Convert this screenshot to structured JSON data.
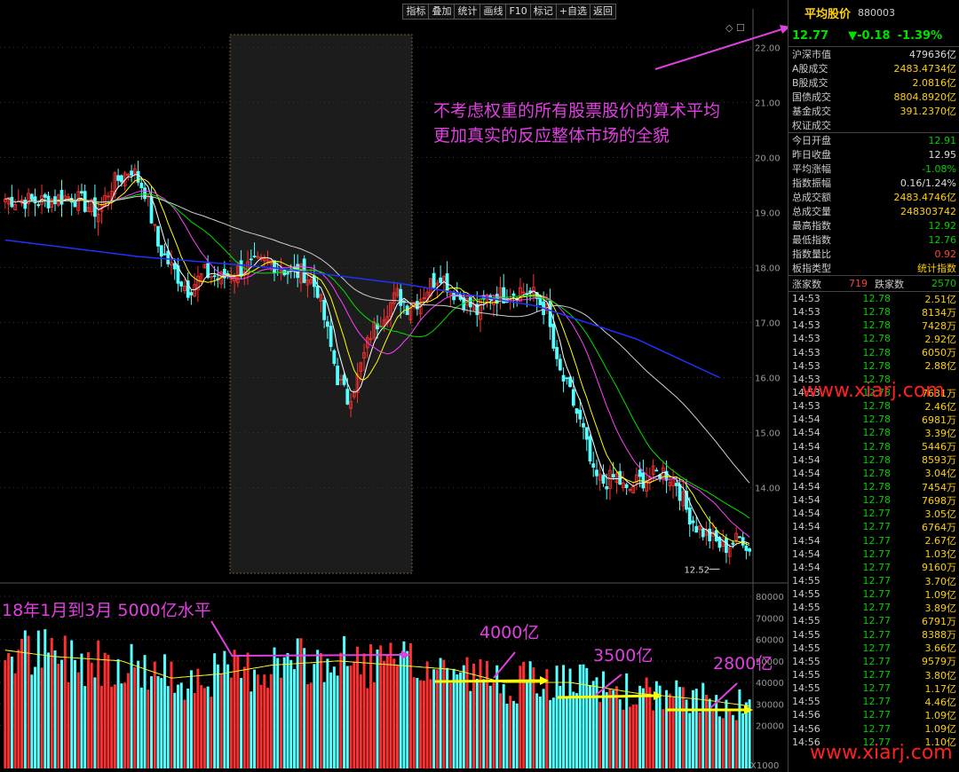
{
  "toolbar": {
    "buttons": [
      "指标",
      "叠加",
      "统计",
      "画线",
      "F10",
      "标记",
      "+自选",
      "返回"
    ]
  },
  "mini_icons": "◇ ☐",
  "panel": {
    "name": "平均股价",
    "code": "880003",
    "price": "12.77",
    "change": "▼-0.18",
    "pct": "-1.39%",
    "market_rows": [
      {
        "k": "沪深市值",
        "v": "479636亿",
        "c": "w"
      },
      {
        "k": "A股成交",
        "v": "2483.4734亿",
        "c": ""
      },
      {
        "k": "B股成交",
        "v": "2.0816亿",
        "c": ""
      },
      {
        "k": "国债成交",
        "v": "8804.8920亿",
        "c": ""
      },
      {
        "k": "基金成交",
        "v": "391.2370亿",
        "c": ""
      },
      {
        "k": "权证成交",
        "v": "",
        "c": ""
      }
    ],
    "stat_rows": [
      {
        "k": "今日开盘",
        "v": "12.91",
        "c": "g"
      },
      {
        "k": "昨日收盘",
        "v": "12.95",
        "c": "w"
      },
      {
        "k": "平均涨幅",
        "v": "-1.08%",
        "c": "g"
      },
      {
        "k": "指数振幅",
        "v": "0.16/1.24%",
        "c": "w"
      },
      {
        "k": "总成交额",
        "v": "2483.4746亿",
        "c": ""
      },
      {
        "k": "总成交量",
        "v": "248303742",
        "c": ""
      },
      {
        "k": "最高指数",
        "v": "12.92",
        "c": "g"
      },
      {
        "k": "最低指数",
        "v": "12.76",
        "c": "g"
      },
      {
        "k": "指数量比",
        "v": "0.92",
        "c": "r"
      },
      {
        "k": "板指类型",
        "v": "统计指数",
        "c": ""
      }
    ],
    "up_label": "涨家数",
    "up_count": "719",
    "down_label": "跌家数",
    "down_count": "2570",
    "ticks": [
      {
        "t": "14:53",
        "p": "12.78",
        "v": "2.51亿"
      },
      {
        "t": "14:53",
        "p": "12.78",
        "v": "8134万"
      },
      {
        "t": "14:53",
        "p": "12.78",
        "v": "7428万"
      },
      {
        "t": "14:53",
        "p": "12.78",
        "v": "2.92亿"
      },
      {
        "t": "14:53",
        "p": "12.78",
        "v": "6050万"
      },
      {
        "t": "14:53",
        "p": "12.78",
        "v": "2.88亿"
      },
      {
        "t": "14:53",
        "p": "12.78",
        "v": ""
      },
      {
        "t": "14:53",
        "p": "12.78",
        "v": "7631万"
      },
      {
        "t": "14:53",
        "p": "12.78",
        "v": "2.46亿"
      },
      {
        "t": "14:54",
        "p": "12.78",
        "v": "6981万"
      },
      {
        "t": "14:54",
        "p": "12.78",
        "v": "3.39亿"
      },
      {
        "t": "14:54",
        "p": "12.78",
        "v": "5446万"
      },
      {
        "t": "14:54",
        "p": "12.78",
        "v": "8593万"
      },
      {
        "t": "14:54",
        "p": "12.78",
        "v": "3.04亿"
      },
      {
        "t": "14:54",
        "p": "12.78",
        "v": "7454万"
      },
      {
        "t": "14:54",
        "p": "12.78",
        "v": "7698万"
      },
      {
        "t": "14:54",
        "p": "12.77",
        "v": "3.05亿"
      },
      {
        "t": "14:54",
        "p": "12.77",
        "v": "6764万"
      },
      {
        "t": "14:54",
        "p": "12.77",
        "v": "2.67亿"
      },
      {
        "t": "14:54",
        "p": "12.77",
        "v": "1.03亿"
      },
      {
        "t": "14:54",
        "p": "12.77",
        "v": "9160万"
      },
      {
        "t": "14:55",
        "p": "12.77",
        "v": "3.70亿"
      },
      {
        "t": "14:55",
        "p": "12.77",
        "v": "1.09亿"
      },
      {
        "t": "14:55",
        "p": "12.77",
        "v": "3.89亿"
      },
      {
        "t": "14:55",
        "p": "12.77",
        "v": "6791万"
      },
      {
        "t": "14:55",
        "p": "12.77",
        "v": "8388万"
      },
      {
        "t": "14:55",
        "p": "12.77",
        "v": "3.66亿"
      },
      {
        "t": "14:55",
        "p": "12.77",
        "v": "9579万"
      },
      {
        "t": "14:55",
        "p": "12.77",
        "v": "3.80亿"
      },
      {
        "t": "14:55",
        "p": "12.77",
        "v": "1.17亿"
      },
      {
        "t": "14:55",
        "p": "12.77",
        "v": "4.46亿"
      },
      {
        "t": "14:56",
        "p": "12.77",
        "v": "1.09亿"
      },
      {
        "t": "14:56",
        "p": "12.77",
        "v": "1.09亿"
      },
      {
        "t": "14:56",
        "p": "12.77",
        "v": "1.10亿"
      }
    ]
  },
  "annotations": {
    "note_line1": "不考虑权重的所有股票股价的算术平均",
    "note_line2": "更加真实的反应整体市场的全貌",
    "vol_18": "18年1月到3月  5000亿水平",
    "vol_4000": "4000亿",
    "vol_3500": "3500亿",
    "vol_2800": "2800亿",
    "low_label": "12.52"
  },
  "watermarks": [
    "www.xiarj.com",
    "www.xiarj.com"
  ],
  "colors": {
    "up": "#ff3030",
    "down": "#54ffff",
    "annotation": "#e040e0",
    "ma1": "#ffffff",
    "ma2": "#ffff00",
    "ma3": "#ff40ff",
    "ma4": "#00e000",
    "ma5": "#cfcfcf",
    "ma6": "#2030ff"
  },
  "chart_data": {
    "type": "candlestick",
    "price_axis": {
      "ticks": [
        22.0,
        21.0,
        20.0,
        19.0,
        18.0,
        17.0,
        16.0,
        15.0,
        14.0
      ],
      "range": [
        12.3,
        22.7
      ]
    },
    "volume_axis": {
      "ticks": [
        80000,
        70000,
        60000,
        50000,
        40000,
        30000,
        20000
      ],
      "range": [
        0,
        85000
      ],
      "unit_label": "X1000"
    },
    "keypoints": [
      [
        0,
        19.25
      ],
      [
        10,
        19.2
      ],
      [
        20,
        19.3
      ],
      [
        28,
        19.0
      ],
      [
        32,
        19.5
      ],
      [
        38,
        19.8
      ],
      [
        42,
        19.4
      ],
      [
        46,
        18.4
      ],
      [
        50,
        18.0
      ],
      [
        55,
        17.6
      ],
      [
        60,
        17.9
      ],
      [
        65,
        17.8
      ],
      [
        72,
        18.0
      ],
      [
        80,
        18.1
      ],
      [
        86,
        17.9
      ],
      [
        90,
        17.9
      ],
      [
        94,
        17.6
      ],
      [
        97,
        16.8
      ],
      [
        100,
        16.0
      ],
      [
        103,
        15.6
      ],
      [
        106,
        16.0
      ],
      [
        110,
        16.8
      ],
      [
        114,
        17.2
      ],
      [
        118,
        17.5
      ],
      [
        121,
        17.3
      ],
      [
        124,
        17.4
      ],
      [
        128,
        17.7
      ],
      [
        131,
        17.9
      ],
      [
        134,
        17.6
      ],
      [
        138,
        17.4
      ],
      [
        142,
        17.2
      ],
      [
        146,
        17.5
      ],
      [
        150,
        17.5
      ],
      [
        155,
        17.6
      ],
      [
        159,
        17.5
      ],
      [
        163,
        17.2
      ],
      [
        166,
        16.2
      ],
      [
        170,
        15.7
      ],
      [
        174,
        15.0
      ],
      [
        177,
        14.2
      ],
      [
        180,
        14.1
      ],
      [
        184,
        14.2
      ],
      [
        187,
        13.9
      ],
      [
        190,
        14.1
      ],
      [
        194,
        14.2
      ],
      [
        198,
        14.3
      ],
      [
        202,
        14.1
      ],
      [
        205,
        13.6
      ],
      [
        208,
        13.3
      ],
      [
        212,
        13.1
      ],
      [
        216,
        12.9
      ],
      [
        219,
        13.0
      ],
      [
        222,
        13.1
      ],
      [
        224,
        12.85
      ]
    ],
    "low_marker": 12.52,
    "volume_levels_yi": [
      5000,
      4000,
      3500,
      2800
    ]
  }
}
